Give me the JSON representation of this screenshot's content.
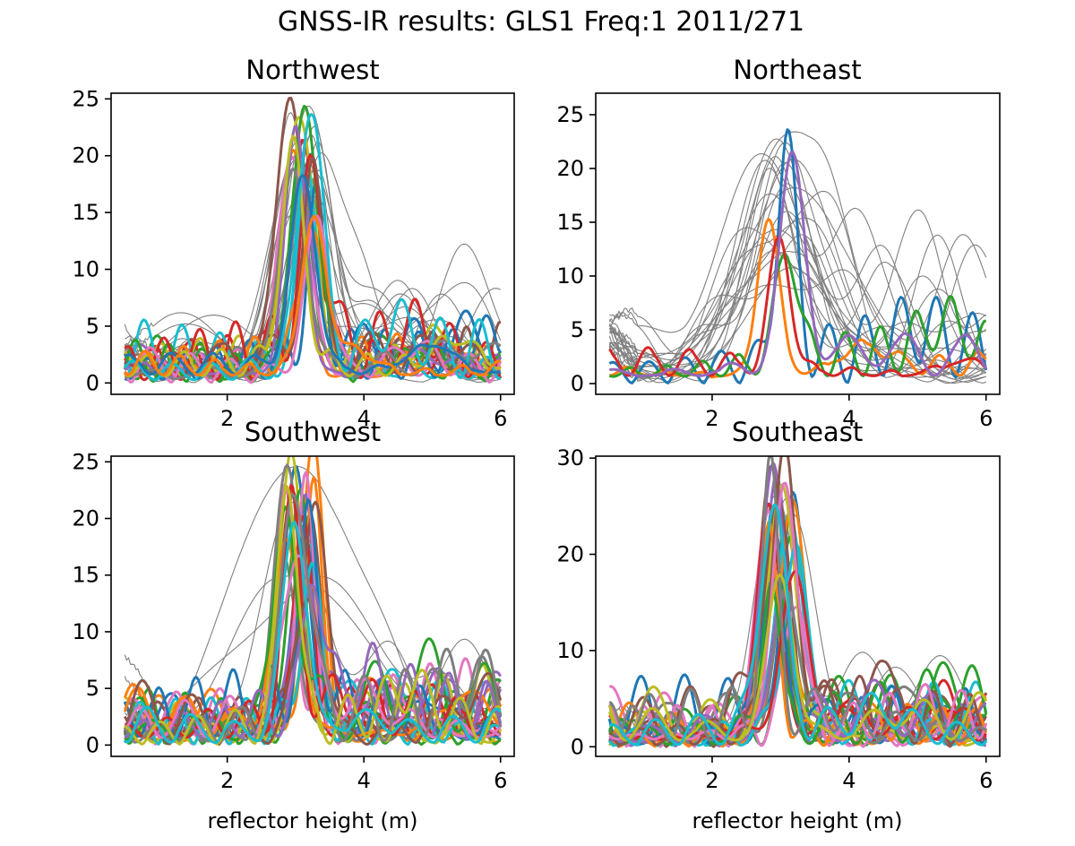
{
  "figure": {
    "suptitle": "GNSS-IR results: GLS1 Freq:1 2011/271"
  },
  "style": {
    "background": "#ffffff",
    "axis_color": "#000000",
    "faint_color": "#808080",
    "palette": [
      "#1f77b4",
      "#ff7f0e",
      "#2ca02c",
      "#d62728",
      "#9467bd",
      "#8c564b",
      "#e377c2",
      "#7f7f7f",
      "#bcbd22",
      "#17becf"
    ]
  },
  "chart_data": [
    {
      "type": "line",
      "title": "Northwest",
      "xlabel": "",
      "ylabel": "",
      "xlim": [
        0.3,
        6.2
      ],
      "ylim": [
        -1,
        25.5
      ],
      "xticks": [
        "2",
        "4",
        "6"
      ],
      "yticks": [
        "0",
        "5",
        "10",
        "15",
        "20",
        "25"
      ],
      "grid": false,
      "legend": "none",
      "peak_x": 3.1,
      "peak_max": 24,
      "peak_min": 12,
      "noise_level": 5.5,
      "bold_count": 22,
      "faint_count": 18,
      "faint_wide": false,
      "seed": 11,
      "series_note": "x from 0.5 to 6.0 m, periodogram amplitude"
    },
    {
      "type": "line",
      "title": "Northeast",
      "xlabel": "",
      "ylabel": "",
      "xlim": [
        0.3,
        6.2
      ],
      "ylim": [
        -1,
        27
      ],
      "xticks": [
        "2",
        "4",
        "6"
      ],
      "yticks": [
        "0",
        "5",
        "10",
        "15",
        "20",
        "25"
      ],
      "grid": false,
      "legend": "none",
      "peak_x": 3.0,
      "peak_max": 22,
      "peak_min": 8,
      "noise_level": 6,
      "bold_count": 5,
      "faint_count": 22,
      "faint_wide": true,
      "seed": 23,
      "series_note": "x from 0.5 to 6.0 m, periodogram amplitude"
    },
    {
      "type": "line",
      "title": "Southwest",
      "xlabel": "reflector height (m)",
      "ylabel": "",
      "xlim": [
        0.3,
        6.2
      ],
      "ylim": [
        -1,
        25.5
      ],
      "xticks": [
        "2",
        "4",
        "6"
      ],
      "yticks": [
        "0",
        "5",
        "10",
        "15",
        "20",
        "25"
      ],
      "grid": false,
      "legend": "none",
      "peak_x": 3.05,
      "peak_max": 24,
      "peak_min": 12,
      "noise_level": 7,
      "bold_count": 30,
      "faint_count": 4,
      "faint_wide": true,
      "seed": 37,
      "series_note": "x from 0.5 to 6.0 m, periodogram amplitude"
    },
    {
      "type": "line",
      "title": "Southeast",
      "xlabel": "reflector height (m)",
      "ylabel": "",
      "xlim": [
        0.3,
        6.2
      ],
      "ylim": [
        -1,
        30.2
      ],
      "xticks": [
        "2",
        "4",
        "6"
      ],
      "yticks": [
        "0",
        "10",
        "20",
        "30"
      ],
      "grid": false,
      "legend": "none",
      "peak_x": 3.0,
      "peak_max": 28.5,
      "peak_min": 14,
      "noise_level": 7,
      "bold_count": 30,
      "faint_count": 4,
      "faint_wide": false,
      "seed": 53,
      "series_note": "x from 0.5 to 6.0 m, periodogram amplitude"
    }
  ]
}
